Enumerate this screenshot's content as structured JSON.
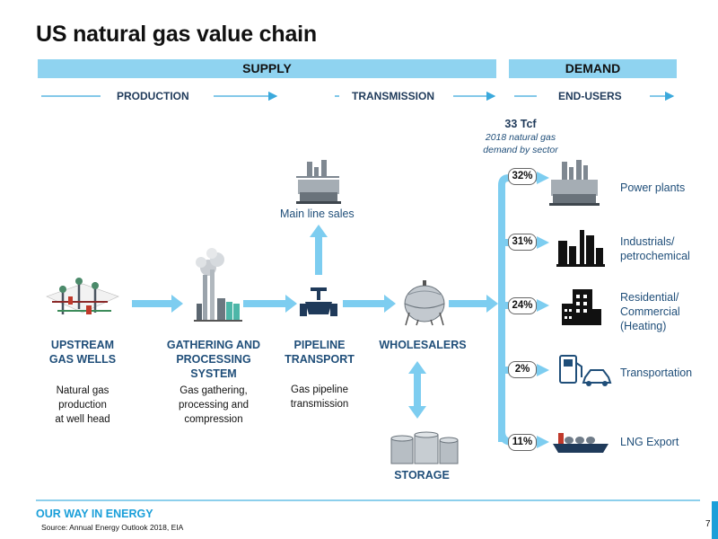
{
  "title": "US natural gas value chain",
  "bands": {
    "supply": "SUPPLY",
    "demand": "DEMAND"
  },
  "stages": {
    "production": "PRODUCTION",
    "transmission": "TRANSMISSION",
    "end_users": "END-USERS"
  },
  "demand_summary": {
    "total": "33 Tcf",
    "caption_line1": "2018 natural gas",
    "caption_line2": "demand by sector"
  },
  "main_line_sales": "Main line sales",
  "nodes": {
    "upstream": {
      "line1": "UPSTREAM",
      "line2": "GAS WELLS",
      "desc1": "Natural gas",
      "desc2": "production",
      "desc3": "at well head"
    },
    "gathering": {
      "line1": "GATHERING AND",
      "line2": "PROCESSING",
      "line3": "SYSTEM",
      "desc1": "Gas gathering,",
      "desc2": "processing and",
      "desc3": "compression"
    },
    "pipeline": {
      "line1": "PIPELINE",
      "line2": "TRANSPORT",
      "desc1": "Gas pipeline",
      "desc2": "transmission"
    },
    "wholesalers": {
      "line1": "WHOLESALERS"
    },
    "storage": {
      "line1": "STORAGE"
    }
  },
  "end_users": [
    {
      "pct": "32%",
      "label1": "Power plants",
      "label2": "",
      "label3": ""
    },
    {
      "pct": "31%",
      "label1": "Industrials/",
      "label2": "petrochemical",
      "label3": ""
    },
    {
      "pct": "24%",
      "label1": "Residential/",
      "label2": "Commercial",
      "label3": "(Heating)"
    },
    {
      "pct": "2%",
      "label1": "Transportation",
      "label2": "",
      "label3": ""
    },
    {
      "pct": "11%",
      "label1": "LNG Export",
      "label2": "",
      "label3": ""
    }
  ],
  "footer": {
    "brand": "OUR WAY IN ENERGY",
    "source": "Source: Annual Energy Outlook 2018, EIA",
    "page": "7"
  },
  "colors": {
    "band": "#8fd3f0",
    "arrow": "#7dcdf0",
    "stage_arrow": "#3ba9dc",
    "label": "#1f4e79",
    "brand": "#1a9fd9"
  }
}
